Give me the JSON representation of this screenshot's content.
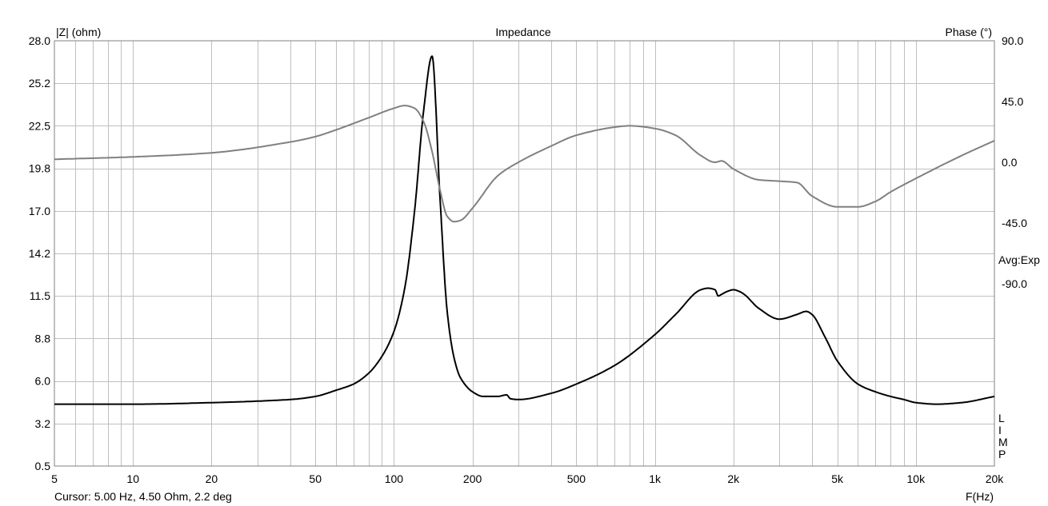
{
  "chart_data": {
    "type": "line",
    "title": "Impedance",
    "y_left_label": "|Z| (ohm)",
    "y_right_label": "Phase (°)",
    "x_label": "F(Hz)",
    "x_scale": "log",
    "xlim": [
      5,
      20000
    ],
    "ylim_left": [
      0.5,
      28.0
    ],
    "ylim_right": [
      -225,
      90
    ],
    "x_ticks": [
      {
        "value": 5,
        "label": "5"
      },
      {
        "value": 10,
        "label": "10"
      },
      {
        "value": 20,
        "label": "20"
      },
      {
        "value": 50,
        "label": "50"
      },
      {
        "value": 100,
        "label": "100"
      },
      {
        "value": 200,
        "label": "200"
      },
      {
        "value": 500,
        "label": "500"
      },
      {
        "value": 1000,
        "label": "1k"
      },
      {
        "value": 2000,
        "label": "2k"
      },
      {
        "value": 5000,
        "label": "5k"
      },
      {
        "value": 10000,
        "label": "10k"
      },
      {
        "value": 20000,
        "label": "20k"
      }
    ],
    "y_left_ticks": [
      "28.0",
      "25.2",
      "22.5",
      "19.8",
      "17.0",
      "14.2",
      "11.5",
      "8.8",
      "6.0",
      "3.2",
      "0.5"
    ],
    "y_right_ticks": [
      "90.0",
      "45.0",
      "0.0",
      "-45.0",
      "-90.0"
    ],
    "grid": true,
    "series": [
      {
        "name": "",
        "axis": "left",
        "unit": "ohm",
        "color": "#000000",
        "x": [
          5,
          10,
          20,
          40,
          50,
          60,
          70,
          80,
          90,
          100,
          110,
          120,
          130,
          140,
          150,
          160,
          170,
          180,
          200,
          220,
          250,
          270,
          280,
          300,
          400,
          500,
          700,
          1000,
          1200,
          1500,
          1600,
          1700,
          1750,
          1800,
          1900,
          2000,
          2100,
          2200,
          2500,
          3000,
          3500,
          3800,
          4000,
          4500,
          5000,
          6000,
          7000,
          8000,
          9000,
          10000,
          12000,
          15000,
          20000
        ],
        "values": [
          4.5,
          4.5,
          4.6,
          4.8,
          5.0,
          5.4,
          5.8,
          6.5,
          7.6,
          9.2,
          12.0,
          17.0,
          23.5,
          27.0,
          18.0,
          10.5,
          7.5,
          6.2,
          5.3,
          5.0,
          5.0,
          5.1,
          4.85,
          4.8,
          5.2,
          5.8,
          7.0,
          9.0,
          10.3,
          11.9,
          12.0,
          11.9,
          11.5,
          11.6,
          11.8,
          11.9,
          11.8,
          11.6,
          10.7,
          10.0,
          10.3,
          10.5,
          10.3,
          8.8,
          7.3,
          5.8,
          5.3,
          5.0,
          4.8,
          4.6,
          4.5,
          4.6,
          5.0
        ]
      },
      {
        "name": "",
        "axis": "right",
        "unit": "deg",
        "color": "#808080",
        "x": [
          5,
          10,
          20,
          40,
          50,
          60,
          80,
          100,
          110,
          120,
          130,
          140,
          150,
          160,
          170,
          180,
          200,
          250,
          300,
          400,
          500,
          700,
          800,
          1000,
          1200,
          1500,
          1700,
          1800,
          2000,
          2500,
          3000,
          3500,
          4000,
          5000,
          6000,
          7000,
          8000,
          10000,
          15000,
          20000
        ],
        "values": [
          2.2,
          4,
          7,
          15,
          19,
          24,
          33,
          40,
          42,
          40,
          30,
          8,
          -20,
          -40,
          -44,
          -43,
          -34,
          -10,
          0,
          12,
          20,
          26,
          27,
          25,
          20,
          5,
          0,
          1,
          -5,
          -13,
          -14,
          -15,
          -25,
          -33,
          -33,
          -29,
          -22,
          -12,
          5,
          16
        ]
      }
    ]
  },
  "side_labels": {
    "avg": "Avg:Exp",
    "limp_letters": [
      "L",
      "I",
      "M",
      "P"
    ]
  },
  "cursor_text": "Cursor: 5.00 Hz, 4.50 Ohm, 2.2 deg",
  "colors": {
    "grid": "#c0c0c0",
    "axis_frame": "#808080",
    "impedance": "#000000",
    "phase": "#808080"
  }
}
